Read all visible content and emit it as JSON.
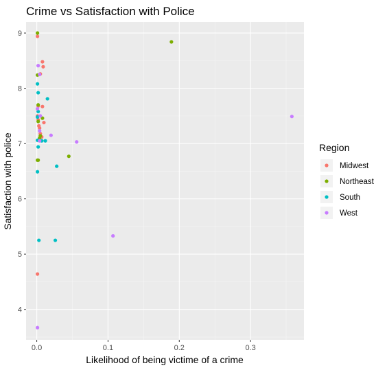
{
  "chart_data": {
    "type": "scatter",
    "title": "Crime vs Satisfaction with Police",
    "xlabel": "Likelihood of being victime of a crime",
    "ylabel": "Satisfaction with police",
    "xlim": [
      -0.015,
      0.375
    ],
    "ylim": [
      3.45,
      9.2
    ],
    "x_ticks": [
      0.0,
      0.1,
      0.2,
      0.3
    ],
    "x_tick_labels": [
      "0.0",
      "0.1",
      "0.2",
      "0.3"
    ],
    "y_ticks": [
      4,
      5,
      6,
      7,
      8,
      9
    ],
    "y_tick_labels": [
      "4",
      "5",
      "6",
      "7",
      "8",
      "9"
    ],
    "grid": true,
    "legend": {
      "title": "Region",
      "position": "right"
    },
    "series": [
      {
        "name": "Midwest",
        "color": "#F8766D",
        "points": [
          [
            0.001,
            8.94
          ],
          [
            0.008,
            8.48
          ],
          [
            0.009,
            8.39
          ],
          [
            0.005,
            8.26
          ],
          [
            0.002,
            7.68
          ],
          [
            0.008,
            7.67
          ],
          [
            0.001,
            7.5
          ],
          [
            0.002,
            7.43
          ],
          [
            0.01,
            7.38
          ],
          [
            0.003,
            7.32
          ],
          [
            0.004,
            7.28
          ],
          [
            0.005,
            7.18
          ],
          [
            0.007,
            7.12
          ],
          [
            0.001,
            4.64
          ]
        ]
      },
      {
        "name": "Northeast",
        "color": "#7CAE00",
        "points": [
          [
            0.001,
            9.0
          ],
          [
            0.189,
            8.84
          ],
          [
            0.001,
            8.24
          ],
          [
            0.002,
            7.7
          ],
          [
            0.008,
            7.46
          ],
          [
            0.002,
            7.4
          ],
          [
            0.005,
            7.14
          ],
          [
            0.004,
            7.1
          ],
          [
            0.045,
            6.77
          ],
          [
            0.001,
            6.7
          ],
          [
            0.002,
            6.7
          ]
        ]
      },
      {
        "name": "South",
        "color": "#00BFC4",
        "points": [
          [
            0.001,
            8.08
          ],
          [
            0.002,
            7.92
          ],
          [
            0.015,
            7.81
          ],
          [
            0.002,
            7.58
          ],
          [
            0.001,
            7.48
          ],
          [
            0.001,
            7.06
          ],
          [
            0.002,
            6.94
          ],
          [
            0.007,
            7.05
          ],
          [
            0.012,
            7.05
          ],
          [
            0.028,
            6.59
          ],
          [
            0.001,
            6.49
          ],
          [
            0.003,
            5.25
          ],
          [
            0.026,
            5.25
          ]
        ]
      },
      {
        "name": "West",
        "color": "#C77CFF",
        "points": [
          [
            0.002,
            8.41
          ],
          [
            0.004,
            8.25
          ],
          [
            0.001,
            7.63
          ],
          [
            0.005,
            7.5
          ],
          [
            0.004,
            7.23
          ],
          [
            0.02,
            7.15
          ],
          [
            0.004,
            7.05
          ],
          [
            0.056,
            7.03
          ],
          [
            0.358,
            7.49
          ],
          [
            0.107,
            5.33
          ],
          [
            0.001,
            3.67
          ]
        ]
      }
    ]
  }
}
